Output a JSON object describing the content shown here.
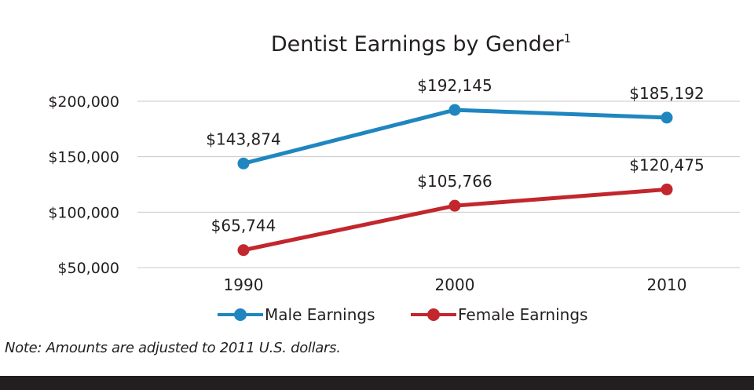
{
  "chart_data": {
    "type": "line",
    "title": "Dentist Earnings by Gender",
    "title_superscript": "1",
    "categories": [
      "1990",
      "2000",
      "2010"
    ],
    "series": [
      {
        "name": "Male Earnings",
        "color": "#1f86c0",
        "values": [
          143874,
          192145,
          185192
        ],
        "labels": [
          "$143,874",
          "$192,145",
          "$185,192"
        ]
      },
      {
        "name": "Female Earnings",
        "color": "#c1272d",
        "values": [
          65744,
          105766,
          120475
        ],
        "labels": [
          "$65,744",
          "$105,766",
          "$120,475"
        ]
      }
    ],
    "ylim": [
      50000,
      200000
    ],
    "yticks": [
      {
        "value": 50000,
        "label": "$50,000"
      },
      {
        "value": 100000,
        "label": "$100,000"
      },
      {
        "value": 150000,
        "label": "$150,000"
      },
      {
        "value": 200000,
        "label": "$200,000"
      }
    ],
    "xlabel": "",
    "ylabel": "",
    "grid": true,
    "legend": "bottom-center"
  },
  "note": "Note: Amounts are adjusted to 2011 U.S. dollars."
}
